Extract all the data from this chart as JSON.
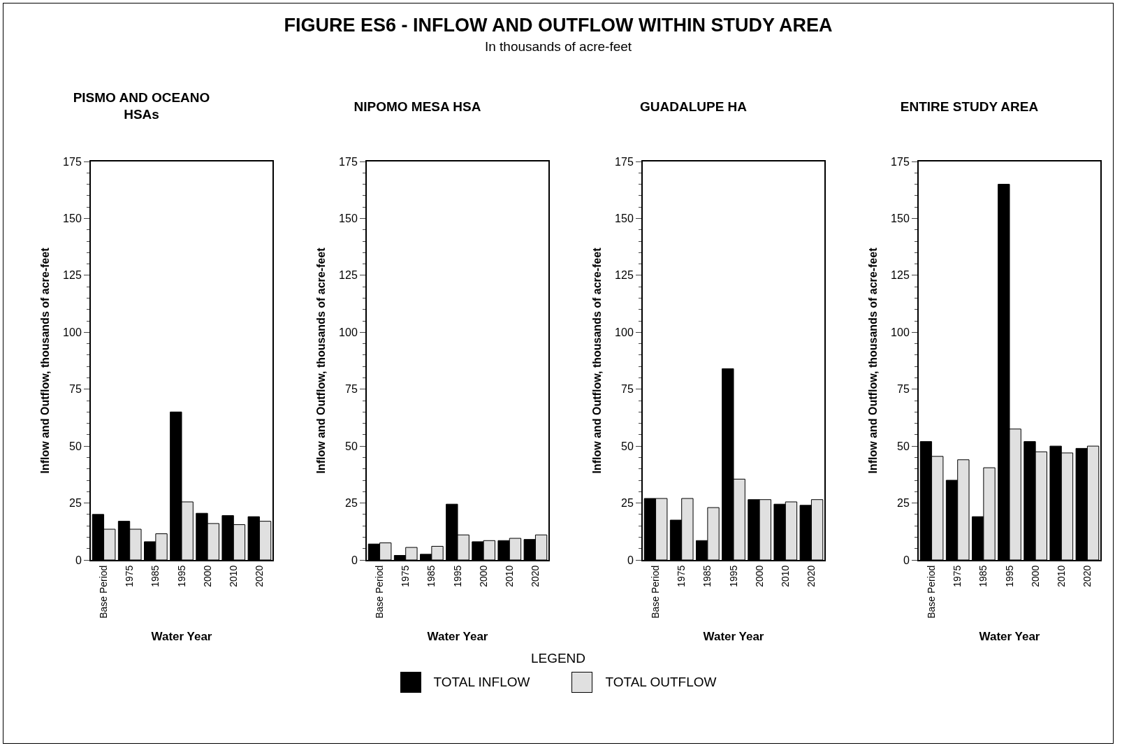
{
  "chart_data": [
    {
      "type": "bar",
      "title": "PISMO AND OCEANO\nHSAs",
      "annotations": [
        "FIGURE ES6  -  INFLOW AND OUTFLOW WITHIN STUDY AREA",
        "In thousands of acre-feet"
      ],
      "xlabel": "Water Year",
      "ylabel": "Inflow and Outflow, thousands of acre-feet",
      "categories": [
        "Base Period",
        "1975",
        "1985",
        "1995",
        "2000",
        "2010",
        "2020"
      ],
      "series": [
        {
          "name": "TOTAL INFLOW",
          "color": "#000000",
          "values": [
            20,
            17,
            8,
            65,
            20.5,
            19.5,
            19
          ]
        },
        {
          "name": "TOTAL OUTFLOW",
          "color": "#e0e0e0",
          "values": [
            13.5,
            13.5,
            11.5,
            25.5,
            16,
            15.5,
            17
          ]
        }
      ],
      "ylim": [
        0,
        175
      ],
      "yticks": [
        0,
        25,
        50,
        75,
        100,
        125,
        150,
        175
      ],
      "legend": "bottom",
      "legend_title": "LEGEND"
    },
    {
      "type": "bar",
      "title": "NIPOMO MESA HSA",
      "xlabel": "Water Year",
      "ylabel": "Inflow and Outflow, thousands of acre-feet",
      "categories": [
        "Base Period",
        "1975",
        "1985",
        "1995",
        "2000",
        "2010",
        "2020"
      ],
      "series": [
        {
          "color": "#000000",
          "values": [
            7,
            2,
            2.5,
            24.5,
            8,
            8.5,
            9
          ]
        },
        {
          "color": "#e0e0e0",
          "values": [
            7.5,
            5.5,
            6,
            11,
            8.5,
            9.5,
            11
          ]
        }
      ],
      "ylim": [
        0,
        175
      ],
      "yticks": [
        0,
        25,
        50,
        75,
        100,
        125,
        150,
        175
      ]
    },
    {
      "type": "bar",
      "title": "GUADALUPE HA",
      "xlabel": "Water Year",
      "ylabel": "Inflow and Outflow, thousands of acre-feet",
      "categories": [
        "Base Period",
        "1975",
        "1985",
        "1995",
        "2000",
        "2010",
        "2020"
      ],
      "series": [
        {
          "color": "#000000",
          "values": [
            27,
            17.5,
            8.5,
            84,
            26.5,
            24.5,
            24
          ]
        },
        {
          "color": "#e0e0e0",
          "values": [
            27,
            27,
            23,
            35.5,
            26.5,
            25.5,
            26.5
          ]
        }
      ],
      "ylim": [
        0,
        175
      ],
      "yticks": [
        0,
        25,
        50,
        75,
        100,
        125,
        150,
        175
      ]
    },
    {
      "type": "bar",
      "title": "ENTIRE STUDY AREA",
      "xlabel": "Water Year",
      "ylabel": "Inflow and Outflow, thousands of acre-feet",
      "categories": [
        "Base Period",
        "1975",
        "1985",
        "1995",
        "2000",
        "2010",
        "2020"
      ],
      "series": [
        {
          "color": "#000000",
          "values": [
            52,
            35,
            19,
            165,
            52,
            50,
            49
          ]
        },
        {
          "color": "#e0e0e0",
          "values": [
            45.5,
            44,
            40.5,
            57.5,
            47.5,
            47,
            50
          ]
        }
      ],
      "ylim": [
        0,
        175
      ],
      "yticks": [
        0,
        25,
        50,
        75,
        100,
        125,
        150,
        175
      ]
    }
  ]
}
